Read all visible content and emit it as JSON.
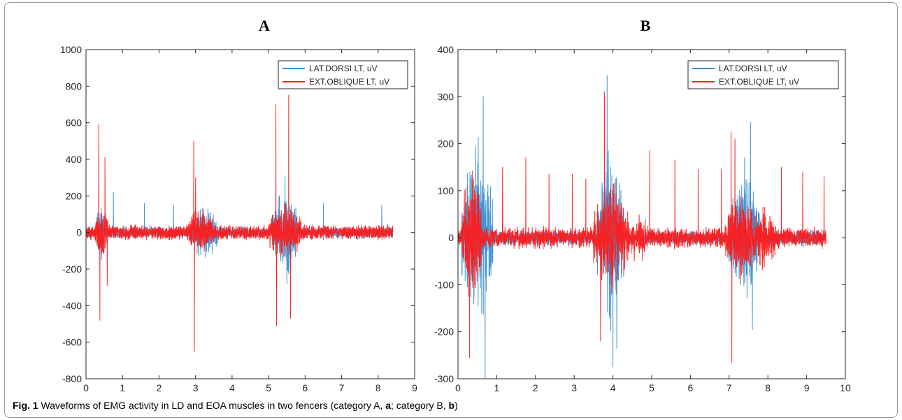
{
  "caption": {
    "label": "Fig. 1",
    "text_1": "  Waveforms of EMG activity in LD and EOA muscles in two fencers (category A, ",
    "bold_a": "a",
    "text_2": "; category B, ",
    "bold_b": "b",
    "text_3": ")"
  },
  "colors": {
    "blue": "#3a8fd1",
    "red": "#ff1a1a",
    "axis": "#262626",
    "grid": "#e6e6e6"
  },
  "chart_data": [
    {
      "type": "line",
      "title": "A",
      "xlabel": "",
      "ylabel": "",
      "xlim": [
        0,
        9
      ],
      "ylim": [
        -800,
        1000
      ],
      "xticks": [
        0,
        1,
        2,
        3,
        4,
        5,
        6,
        7,
        8,
        9
      ],
      "yticks": [
        -800,
        -600,
        -400,
        -200,
        0,
        200,
        400,
        600,
        800,
        1000
      ],
      "legend_position": "top-right",
      "x_end": 8.4,
      "series": [
        {
          "name": "LAT.DORSI LT, uV",
          "color": "#3a8fd1",
          "baseline_amplitude": 35,
          "bursts": [
            [
              0.3,
              0.55,
              200
            ],
            [
              2.85,
              3.6,
              180
            ],
            [
              5.1,
              5.8,
              300
            ]
          ],
          "spikes": [
            [
              0.75,
              220
            ],
            [
              1.6,
              160
            ],
            [
              2.4,
              150
            ],
            [
              5.3,
              200
            ],
            [
              5.45,
              310
            ],
            [
              5.5,
              -280
            ],
            [
              6.5,
              160
            ],
            [
              8.1,
              150
            ]
          ]
        },
        {
          "name": "EXT.OBLIQUE LT, uV",
          "color": "#ff1a1a",
          "baseline_amplitude": 45,
          "bursts": [
            [
              0.2,
              0.6,
              160
            ],
            [
              2.8,
              3.5,
              150
            ],
            [
              5.0,
              5.9,
              180
            ]
          ],
          "spikes": [
            [
              0.35,
              590
            ],
            [
              0.38,
              -480
            ],
            [
              0.52,
              410
            ],
            [
              0.58,
              -290
            ],
            [
              2.95,
              500
            ],
            [
              2.97,
              -650
            ],
            [
              3.0,
              300
            ],
            [
              5.2,
              700
            ],
            [
              5.22,
              -510
            ],
            [
              5.55,
              750
            ],
            [
              5.6,
              -470
            ]
          ]
        }
      ]
    },
    {
      "type": "line",
      "title": "B",
      "xlabel": "",
      "ylabel": "",
      "xlim": [
        0,
        10
      ],
      "ylim": [
        -300,
        400
      ],
      "xticks": [
        0,
        1,
        2,
        3,
        4,
        5,
        6,
        7,
        8,
        9,
        10
      ],
      "yticks": [
        -300,
        -200,
        -100,
        0,
        100,
        200,
        300,
        400
      ],
      "legend_position": "top-right",
      "x_end": 9.5,
      "series": [
        {
          "name": "LAT.DORSI LT, uV",
          "color": "#3a8fd1",
          "baseline_amplitude": 18,
          "bursts": [
            [
              0.1,
              0.9,
              240
            ],
            [
              3.6,
              4.3,
              230
            ],
            [
              7.0,
              7.8,
              170
            ]
          ],
          "spikes": [
            [
              0.65,
              300
            ],
            [
              0.7,
              -300
            ],
            [
              3.85,
              345
            ],
            [
              4.0,
              -275
            ],
            [
              4.1,
              -235
            ],
            [
              7.4,
              170
            ],
            [
              7.55,
              245
            ],
            [
              7.6,
              -195
            ]
          ]
        },
        {
          "name": "EXT.OBLIQUE LT, uV",
          "color": "#ff1a1a",
          "baseline_amplitude": 25,
          "bursts": [
            [
              0.1,
              0.6,
              190
            ],
            [
              3.5,
              4.4,
              140
            ],
            [
              6.9,
              7.6,
              120
            ],
            [
              4.4,
              4.9,
              60
            ],
            [
              7.6,
              8.2,
              80
            ]
          ],
          "spikes": [
            [
              0.3,
              -255
            ],
            [
              1.15,
              150
            ],
            [
              1.75,
              170
            ],
            [
              2.35,
              135
            ],
            [
              2.95,
              135
            ],
            [
              3.3,
              125
            ],
            [
              3.78,
              310
            ],
            [
              3.68,
              -220
            ],
            [
              4.95,
              185
            ],
            [
              5.6,
              165
            ],
            [
              6.2,
              145
            ],
            [
              6.8,
              145
            ],
            [
              7.05,
              225
            ],
            [
              7.07,
              -265
            ],
            [
              7.15,
              210
            ],
            [
              8.35,
              150
            ],
            [
              8.9,
              140
            ],
            [
              9.45,
              130
            ]
          ]
        }
      ]
    }
  ]
}
